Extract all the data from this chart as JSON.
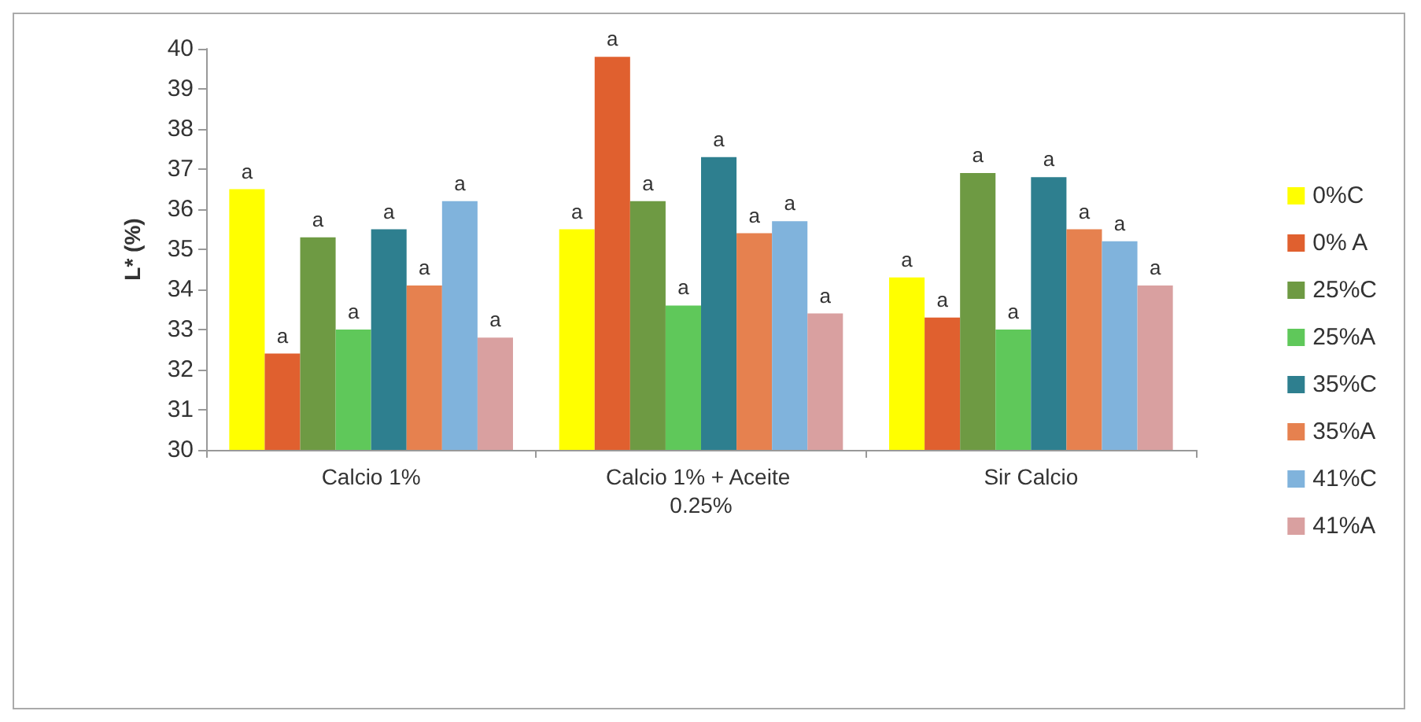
{
  "chart_data": {
    "type": "bar",
    "ylabel": "L* (%)",
    "categories": [
      "Calcio 1%",
      "Calcio 1% + Aceite 0.25%",
      "Sir Calcio"
    ],
    "series": [
      {
        "name": "0%C",
        "color": "#ffff00",
        "values": [
          36.5,
          35.5,
          34.3
        ],
        "value_labels": [
          "a",
          "a",
          "a"
        ]
      },
      {
        "name": "0% A",
        "color": "#e0602f",
        "values": [
          32.4,
          39.8,
          33.3
        ],
        "value_labels": [
          "a",
          "a",
          "a"
        ]
      },
      {
        "name": "25%C",
        "color": "#6e9a43",
        "values": [
          35.3,
          36.2,
          36.9
        ],
        "value_labels": [
          "a",
          "a",
          "a"
        ]
      },
      {
        "name": "25%A",
        "color": "#5fc85a",
        "values": [
          33.0,
          33.6,
          33.0
        ],
        "value_labels": [
          "a",
          "a",
          "a"
        ]
      },
      {
        "name": "35%C",
        "color": "#2e7f8f",
        "values": [
          35.5,
          37.3,
          36.8
        ],
        "value_labels": [
          "a",
          "a",
          "a"
        ]
      },
      {
        "name": "35%A",
        "color": "#e6814f",
        "values": [
          34.1,
          35.4,
          35.5
        ],
        "value_labels": [
          "a",
          "a",
          "a"
        ]
      },
      {
        "name": "41%C",
        "color": "#80b3dc",
        "values": [
          36.2,
          35.7,
          35.2
        ],
        "value_labels": [
          "a",
          "a",
          "a"
        ]
      },
      {
        "name": "41%A",
        "color": "#d9a0a0",
        "values": [
          32.8,
          33.4,
          34.1
        ],
        "value_labels": [
          "a",
          "a",
          "a"
        ]
      }
    ],
    "ylim": [
      30,
      40
    ],
    "yticks": [
      30,
      31,
      32,
      33,
      34,
      35,
      36,
      37,
      38,
      39,
      40
    ],
    "grid": false,
    "legend": "right"
  }
}
